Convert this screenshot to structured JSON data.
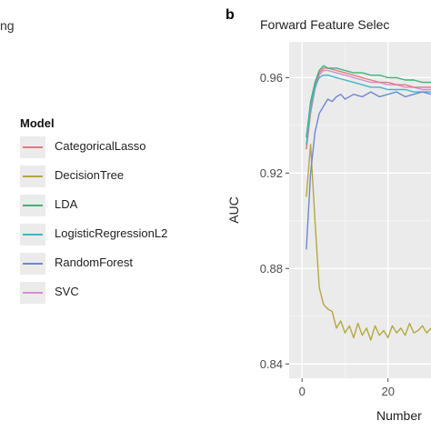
{
  "left_panel": {
    "title_fragment": "ng"
  },
  "legend": {
    "title": "Model",
    "items": [
      {
        "label": "CategoricalLasso",
        "color": "#e07b7b"
      },
      {
        "label": "DecisionTree",
        "color": "#b5a83c"
      },
      {
        "label": "LDA",
        "color": "#3fb37a"
      },
      {
        "label": "LogisticRegressionL2",
        "color": "#3fb7c2"
      },
      {
        "label": "RandomForest",
        "color": "#6f86d6"
      },
      {
        "label": "SVC",
        "color": "#d58ed0"
      }
    ]
  },
  "panel_label": "b",
  "chart_data": {
    "type": "line",
    "title": "Forward Feature Selec",
    "xlabel": "Number",
    "ylabel": "AUC",
    "xlim": [
      -3,
      30
    ],
    "ylim": [
      0.834,
      0.975
    ],
    "x_ticks": [
      0,
      20
    ],
    "y_ticks": [
      0.84,
      0.88,
      0.92,
      0.96
    ],
    "y_tick_labels": [
      "0.84",
      "0.88",
      "0.92",
      "0.96"
    ],
    "x_tick_labels": [
      "0",
      "20"
    ],
    "grid": true,
    "legend_position": "left",
    "series": [
      {
        "name": "DecisionTree",
        "color": "#b5a83c",
        "x": [
          1,
          2,
          3,
          4,
          5,
          6,
          7,
          8,
          9,
          10,
          11,
          12,
          13,
          14,
          15,
          16,
          17,
          18,
          19,
          20,
          21,
          22,
          23,
          24,
          25,
          26,
          27,
          28,
          29,
          30
        ],
        "y": [
          0.91,
          0.932,
          0.9,
          0.872,
          0.865,
          0.863,
          0.862,
          0.855,
          0.858,
          0.853,
          0.856,
          0.851,
          0.857,
          0.852,
          0.855,
          0.85,
          0.856,
          0.852,
          0.854,
          0.851,
          0.856,
          0.853,
          0.855,
          0.852,
          0.857,
          0.853,
          0.854,
          0.856,
          0.853,
          0.855
        ]
      },
      {
        "name": "SVC",
        "color": "#d58ed0",
        "x": [
          1,
          2,
          3,
          4,
          5,
          6,
          8,
          10,
          12,
          14,
          16,
          18,
          20,
          22,
          24,
          26,
          28,
          30
        ],
        "y": [
          0.93,
          0.945,
          0.955,
          0.961,
          0.963,
          0.963,
          0.962,
          0.961,
          0.96,
          0.959,
          0.958,
          0.958,
          0.957,
          0.957,
          0.956,
          0.956,
          0.955,
          0.955
        ]
      },
      {
        "name": "CategoricalLasso",
        "color": "#e07b7b",
        "x": [
          1,
          2,
          3,
          4,
          5,
          6,
          8,
          10,
          12,
          14,
          16,
          18,
          20,
          22,
          24,
          26,
          28,
          30
        ],
        "y": [
          0.93,
          0.946,
          0.957,
          0.962,
          0.964,
          0.964,
          0.963,
          0.962,
          0.961,
          0.96,
          0.959,
          0.958,
          0.958,
          0.957,
          0.957,
          0.956,
          0.956,
          0.956
        ]
      },
      {
        "name": "LDA",
        "color": "#3fb37a",
        "x": [
          1,
          2,
          3,
          4,
          5,
          6,
          8,
          10,
          12,
          14,
          16,
          18,
          20,
          22,
          24,
          26,
          28,
          30
        ],
        "y": [
          0.935,
          0.95,
          0.958,
          0.963,
          0.965,
          0.964,
          0.964,
          0.963,
          0.962,
          0.962,
          0.961,
          0.961,
          0.96,
          0.96,
          0.959,
          0.959,
          0.958,
          0.958
        ]
      },
      {
        "name": "LogisticRegressionL2",
        "color": "#3fb7c2",
        "x": [
          1,
          2,
          3,
          4,
          5,
          6,
          8,
          10,
          12,
          14,
          16,
          18,
          20,
          22,
          24,
          26,
          28,
          30
        ],
        "y": [
          0.932,
          0.948,
          0.956,
          0.96,
          0.961,
          0.961,
          0.96,
          0.959,
          0.958,
          0.957,
          0.956,
          0.956,
          0.955,
          0.955,
          0.955,
          0.954,
          0.954,
          0.954
        ]
      },
      {
        "name": "RandomForest",
        "color": "#6f86d6",
        "x": [
          1,
          2,
          3,
          4,
          5,
          6,
          7,
          8,
          9,
          10,
          12,
          14,
          16,
          18,
          20,
          22,
          24,
          26,
          28,
          30
        ],
        "y": [
          0.888,
          0.92,
          0.937,
          0.945,
          0.948,
          0.951,
          0.95,
          0.952,
          0.953,
          0.951,
          0.953,
          0.952,
          0.954,
          0.952,
          0.953,
          0.954,
          0.952,
          0.953,
          0.954,
          0.953
        ]
      }
    ]
  }
}
